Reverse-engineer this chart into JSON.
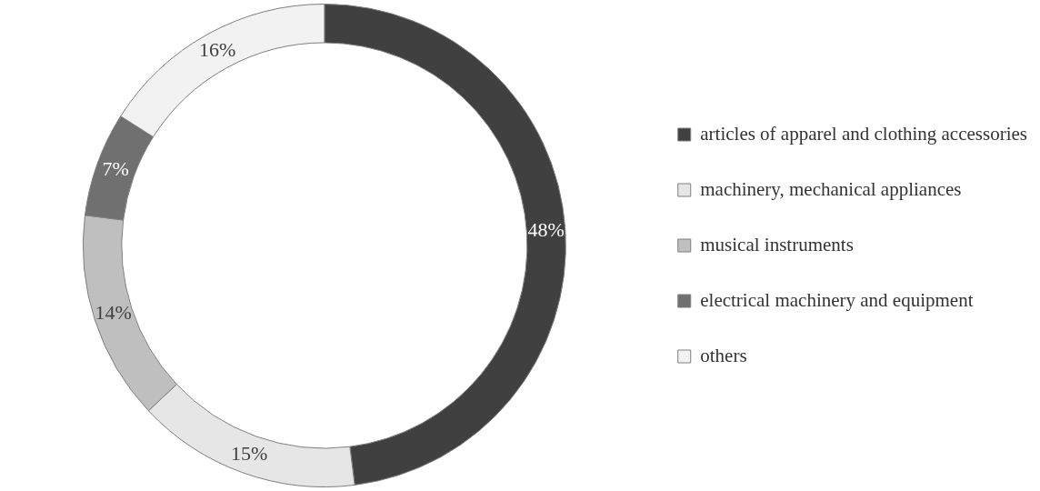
{
  "chart_data": {
    "type": "donut",
    "categories": [
      "articles of apparel and clothing accessories",
      "machinery, mechanical appliances",
      "musical instruments",
      "electrical machinery and equipment",
      "others"
    ],
    "values": [
      48,
      15,
      14,
      7,
      16
    ],
    "colors": [
      "#404040",
      "#e6e6e6",
      "#bfbfbf",
      "#707070",
      "#f2f2f2"
    ],
    "value_labels": [
      "48%",
      "15%",
      "14%",
      "7%",
      "16%"
    ],
    "legend": "right"
  }
}
